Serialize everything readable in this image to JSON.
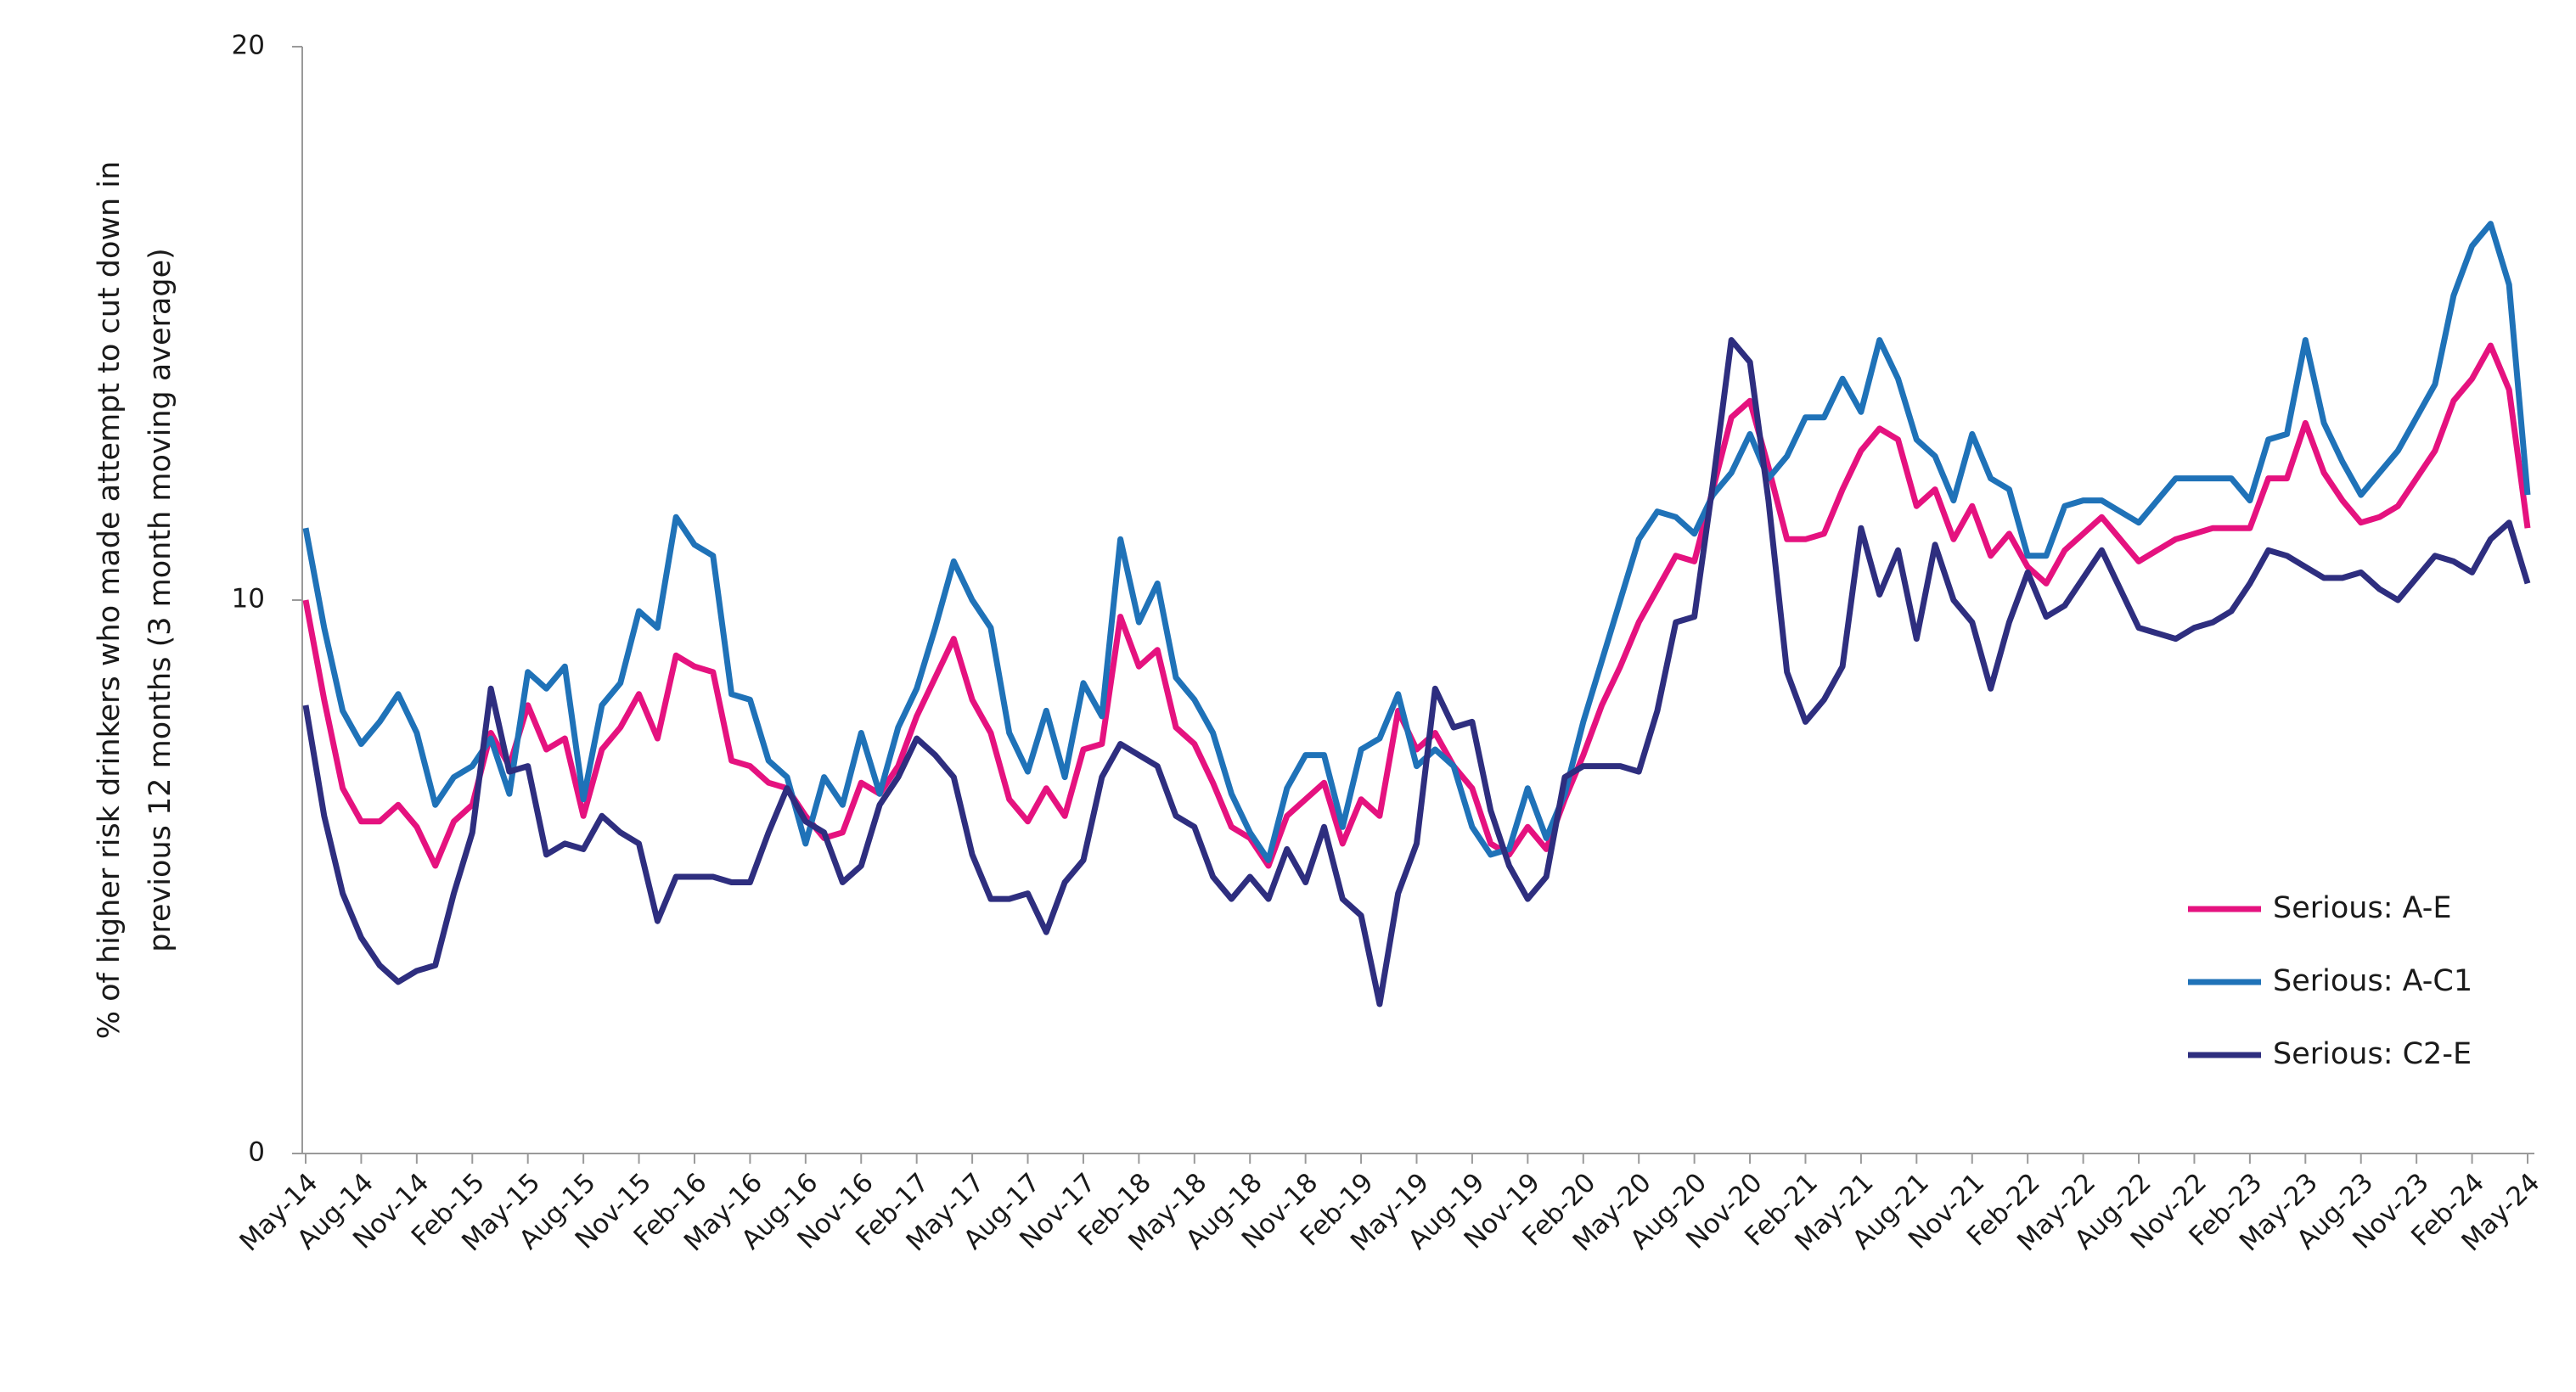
{
  "chart_data": {
    "type": "line",
    "y_label": [
      "% of higher risk drinkers who made attempt to cut down in",
      "previous 12 months (3 month moving average)"
    ],
    "categories": [
      "May-14",
      null,
      null,
      "Aug-14",
      null,
      null,
      "Nov-14",
      null,
      null,
      "Feb-15",
      null,
      null,
      "May-15",
      null,
      null,
      "Aug-15",
      null,
      null,
      "Nov-15",
      null,
      null,
      "Feb-16",
      null,
      null,
      "May-16",
      null,
      null,
      "Aug-16",
      null,
      null,
      "Nov-16",
      null,
      null,
      "Feb-17",
      null,
      null,
      "May-17",
      null,
      null,
      "Aug-17",
      null,
      null,
      "Nov-17",
      null,
      null,
      "Feb-18",
      null,
      null,
      "May-18",
      null,
      null,
      "Aug-18",
      null,
      null,
      "Nov-18",
      null,
      null,
      "Feb-19",
      null,
      null,
      "May-19",
      null,
      null,
      "Aug-19",
      null,
      null,
      "Nov-19",
      null,
      null,
      "Feb-20",
      null,
      null,
      "May-20",
      null,
      null,
      "Aug-20",
      null,
      null,
      "Nov-20",
      null,
      null,
      "Feb-21",
      null,
      null,
      "May-21",
      null,
      null,
      "Aug-21",
      null,
      null,
      "Nov-21",
      null,
      null,
      "Feb-22",
      null,
      null,
      "May-22",
      null,
      null,
      "Aug-22",
      null,
      null,
      "Nov-22",
      null,
      null,
      "Feb-23",
      null,
      null,
      "May-23",
      null,
      null,
      "Aug-23",
      null,
      null,
      "Nov-23",
      null,
      null,
      "Feb-24",
      null,
      null,
      "May-24"
    ],
    "series": [
      {
        "name": "Serious: A-E",
        "color": "#e5127f",
        "values": [
          10.0,
          8.2,
          6.6,
          6.0,
          6.0,
          6.3,
          5.9,
          5.2,
          6.0,
          6.3,
          7.6,
          7.0,
          8.1,
          7.3,
          7.5,
          6.1,
          7.3,
          7.7,
          8.3,
          7.5,
          9.0,
          8.8,
          8.7,
          7.1,
          7.0,
          6.7,
          6.6,
          6.1,
          5.7,
          5.8,
          6.7,
          6.5,
          7.0,
          7.9,
          8.6,
          9.3,
          8.2,
          7.6,
          6.4,
          6.0,
          6.6,
          6.1,
          7.3,
          7.4,
          9.7,
          8.8,
          9.1,
          7.7,
          7.4,
          6.7,
          5.9,
          5.7,
          5.2,
          6.1,
          6.4,
          6.7,
          5.6,
          6.4,
          6.1,
          8.0,
          7.3,
          7.6,
          7.0,
          6.6,
          5.6,
          5.4,
          5.9,
          5.5,
          6.4,
          7.2,
          8.1,
          8.8,
          9.6,
          10.2,
          10.8,
          10.7,
          12.0,
          13.3,
          13.6,
          12.4,
          11.1,
          11.1,
          11.2,
          12.0,
          12.7,
          13.1,
          12.9,
          11.7,
          12.0,
          11.1,
          11.7,
          10.8,
          11.2,
          10.6,
          10.3,
          10.9,
          11.2,
          11.5,
          11.1,
          10.7,
          10.9,
          11.1,
          11.2,
          11.3,
          11.3,
          11.3,
          12.2,
          12.2,
          13.2,
          12.3,
          11.8,
          11.4,
          11.5,
          11.7,
          12.2,
          12.7,
          13.6,
          14.0,
          14.6,
          13.8,
          11.3
        ]
      },
      {
        "name": "Serious: A-C1",
        "color": "#1f72b8",
        "values": [
          11.3,
          9.5,
          8.0,
          7.4,
          7.8,
          8.3,
          7.6,
          6.3,
          6.8,
          7.0,
          7.5,
          6.5,
          8.7,
          8.4,
          8.8,
          6.4,
          8.1,
          8.5,
          9.8,
          9.5,
          11.5,
          11.0,
          10.8,
          8.3,
          8.2,
          7.1,
          6.8,
          5.6,
          6.8,
          6.3,
          7.6,
          6.5,
          7.7,
          8.4,
          9.5,
          10.7,
          10.0,
          9.5,
          7.6,
          6.9,
          8.0,
          6.8,
          8.5,
          7.9,
          11.1,
          9.6,
          10.3,
          8.6,
          8.2,
          7.6,
          6.5,
          5.8,
          5.3,
          6.6,
          7.2,
          7.2,
          5.9,
          7.3,
          7.5,
          8.3,
          7.0,
          7.3,
          7.0,
          5.9,
          5.4,
          5.5,
          6.6,
          5.7,
          6.5,
          7.8,
          8.9,
          10.0,
          11.1,
          11.6,
          11.5,
          11.2,
          11.9,
          12.3,
          13.0,
          12.2,
          12.6,
          13.3,
          13.3,
          14.0,
          13.4,
          14.7,
          14.0,
          12.9,
          12.6,
          11.8,
          13.0,
          12.2,
          12.0,
          10.8,
          10.8,
          11.7,
          11.8,
          11.8,
          11.6,
          11.4,
          11.8,
          12.2,
          12.2,
          12.2,
          12.2,
          11.8,
          12.9,
          13.0,
          14.7,
          13.2,
          12.5,
          11.9,
          12.3,
          12.7,
          13.3,
          13.9,
          15.5,
          16.4,
          16.8,
          15.7,
          11.9
        ]
      },
      {
        "name": "Serious: C2-E",
        "color": "#2e2e7f",
        "values": [
          8.1,
          6.1,
          4.7,
          3.9,
          3.4,
          3.1,
          3.3,
          3.4,
          4.7,
          5.8,
          8.4,
          6.9,
          7.0,
          5.4,
          5.6,
          5.5,
          6.1,
          5.8,
          5.6,
          4.2,
          5.0,
          5.0,
          5.0,
          4.9,
          4.9,
          5.8,
          6.6,
          6.0,
          5.8,
          4.9,
          5.2,
          6.3,
          6.8,
          7.5,
          7.2,
          6.8,
          5.4,
          4.6,
          4.6,
          4.7,
          4.0,
          4.9,
          5.3,
          6.8,
          7.4,
          7.2,
          7.0,
          6.1,
          5.9,
          5.0,
          4.6,
          5.0,
          4.6,
          5.5,
          4.9,
          5.9,
          4.6,
          4.3,
          2.7,
          4.7,
          5.6,
          8.4,
          7.7,
          7.8,
          6.2,
          5.2,
          4.6,
          5.0,
          6.8,
          7.0,
          7.0,
          7.0,
          6.9,
          8.0,
          9.6,
          9.7,
          12.1,
          14.7,
          14.3,
          11.8,
          8.7,
          7.8,
          8.2,
          8.8,
          11.3,
          10.1,
          10.9,
          9.3,
          11.0,
          10.0,
          9.6,
          8.4,
          9.6,
          10.5,
          9.7,
          9.9,
          10.4,
          10.9,
          10.2,
          9.5,
          9.4,
          9.3,
          9.5,
          9.6,
          9.8,
          10.3,
          10.9,
          10.8,
          10.6,
          10.4,
          10.4,
          10.5,
          10.2,
          10.0,
          10.4,
          10.8,
          10.7,
          10.5,
          11.1,
          11.4,
          10.3
        ]
      }
    ],
    "ylim": [
      0,
      20
    ],
    "yticks": [
      0,
      10,
      20
    ],
    "grid": false,
    "legend": "right"
  }
}
